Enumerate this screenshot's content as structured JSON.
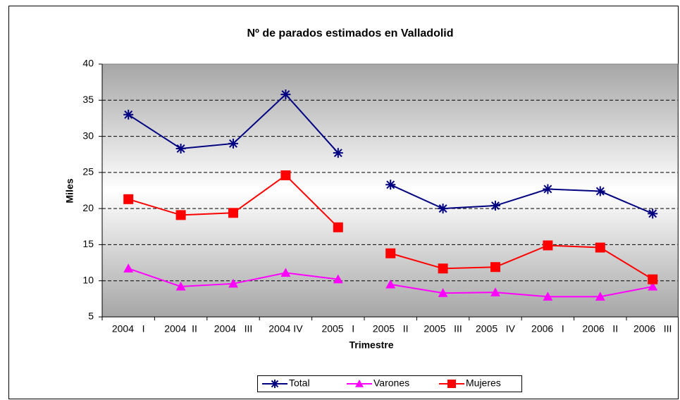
{
  "chart_data": {
    "type": "line",
    "title": "Nº de parados estimados en Valladolid",
    "x_label": "Trimestre",
    "y_label": "Miles",
    "categories": [
      "2004   I",
      "2004  II",
      "2004   III",
      "2004 IV",
      "2005   I",
      "2005   II",
      "2005   III",
      "2005   IV",
      "2006   I",
      "2006   II",
      "2006   III"
    ],
    "break_after": 4,
    "series": [
      {
        "name": "Total",
        "color": "#000080",
        "marker": "star",
        "values": [
          33,
          28.3,
          29,
          35.8,
          27.7,
          23.3,
          20,
          20.4,
          22.7,
          22.4,
          19.3
        ]
      },
      {
        "name": "Varones",
        "color": "#ff00ff",
        "marker": "triangle",
        "values": [
          11.7,
          9.2,
          9.6,
          11.1,
          10.2,
          9.5,
          8.3,
          8.4,
          7.8,
          7.8,
          9.2
        ]
      },
      {
        "name": "Mujeres",
        "color": "#ff0000",
        "marker": "square",
        "values": [
          21.3,
          19.1,
          19.4,
          24.6,
          17.4,
          13.8,
          11.7,
          11.9,
          14.9,
          14.6,
          10.2
        ]
      }
    ],
    "ylim": [
      5,
      40
    ],
    "yticks": [
      5,
      10,
      15,
      20,
      25,
      30,
      35,
      40
    ],
    "grid": true,
    "legend": "bottom"
  }
}
